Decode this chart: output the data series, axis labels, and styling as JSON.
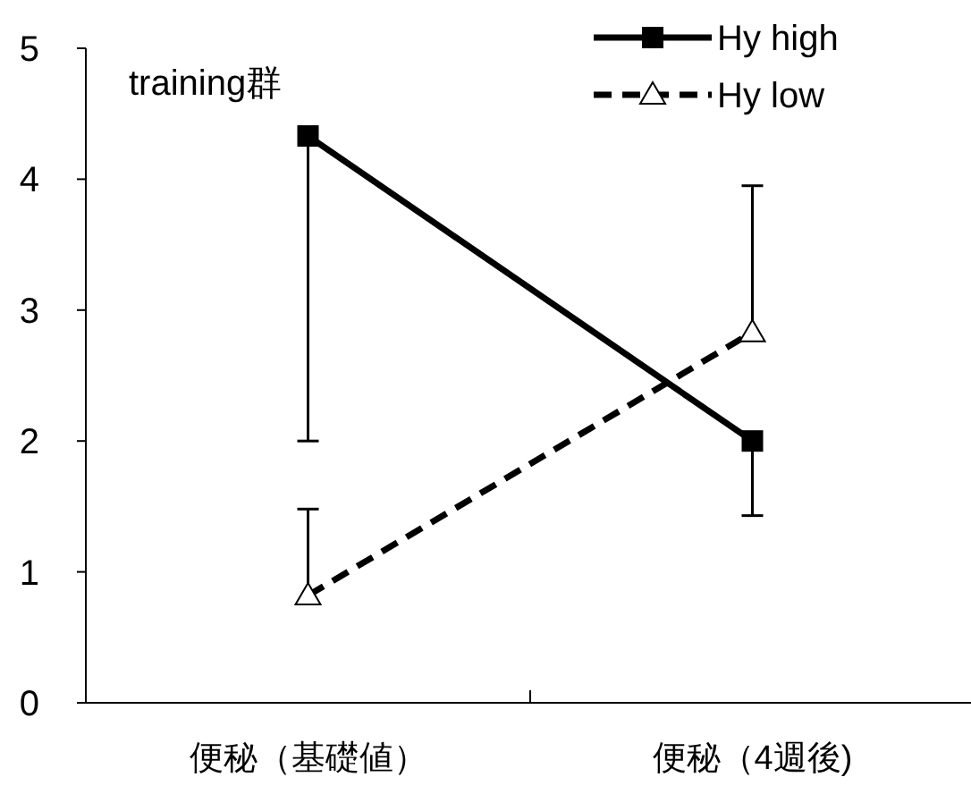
{
  "chart_data": {
    "type": "line",
    "categories": [
      "便秘（基礎値）",
      "便秘（4週後)"
    ],
    "series": [
      {
        "name": "Hy high",
        "color": "#000000",
        "values": [
          4.33,
          2.0
        ],
        "errors": [
          [
            2.0,
            4.33
          ],
          [
            1.43,
            2.0
          ]
        ],
        "marker": "square",
        "line_style": "solid"
      },
      {
        "name": "Hy low",
        "color": "#000000",
        "values": [
          0.82,
          2.83
        ],
        "errors": [
          [
            0.82,
            1.48
          ],
          [
            2.83,
            3.95
          ]
        ],
        "marker": "triangle",
        "line_style": "dashed"
      }
    ],
    "ylim": [
      0,
      5
    ],
    "yticks": [
      0,
      1,
      2,
      3,
      4,
      5
    ],
    "annotations": [
      "training群"
    ],
    "legend": "top right",
    "grid": false
  }
}
